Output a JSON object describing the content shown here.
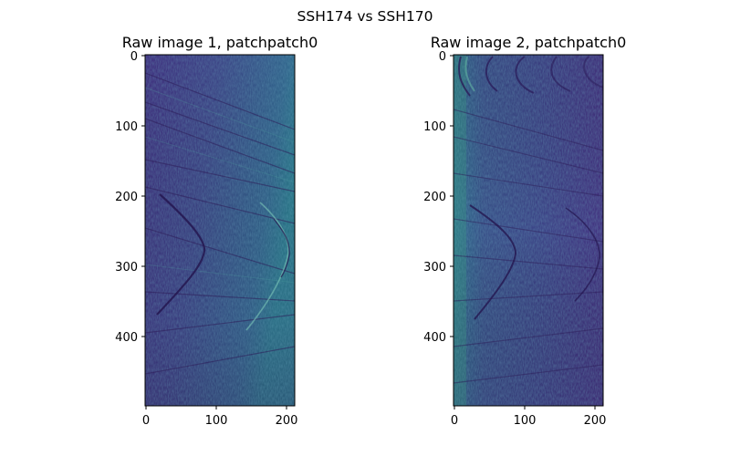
{
  "figure": {
    "suptitle": "SSH174 vs SSH170"
  },
  "panels": [
    {
      "title": "Raw image 1, patchpatch0",
      "x_ticks": [
        "0",
        "100",
        "200"
      ],
      "y_ticks": [
        "0",
        "100",
        "200",
        "300",
        "400"
      ],
      "colormap": "viridis"
    },
    {
      "title": "Raw image 2, patchpatch0",
      "x_ticks": [
        "0",
        "100",
        "200"
      ],
      "y_ticks": [
        "0",
        "100",
        "200",
        "300",
        "400"
      ],
      "colormap": "viridis"
    }
  ],
  "colors": {
    "dark": "#44287a",
    "mid": "#3a4e8a",
    "teal": "#2a7f8e",
    "green": "#35a07a"
  }
}
